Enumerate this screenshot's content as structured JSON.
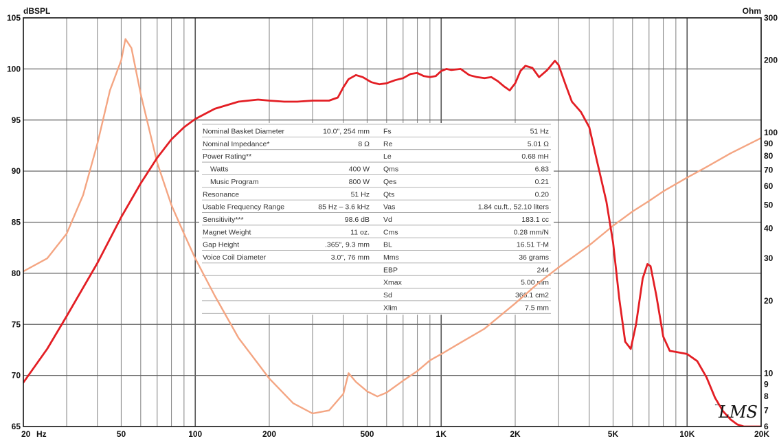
{
  "chart_data": {
    "type": "line",
    "ylabel_left": "dBSPL",
    "ylabel_right": "Ohm",
    "x_scale": "log",
    "x_range": [
      20,
      20000
    ],
    "y_left_range": [
      65,
      105
    ],
    "y_right_range": [
      6,
      300
    ],
    "y_right_scale": "log",
    "grid": true,
    "x_tick_labels": [
      {
        "v": 20,
        "t": "20"
      },
      {
        "v": 50,
        "t": "50"
      },
      {
        "v": 100,
        "t": "100"
      },
      {
        "v": 200,
        "t": "200"
      },
      {
        "v": 500,
        "t": "500"
      },
      {
        "v": 1000,
        "t": "1K"
      },
      {
        "v": 2000,
        "t": "2K"
      },
      {
        "v": 5000,
        "t": "5K"
      },
      {
        "v": 10000,
        "t": "10K"
      },
      {
        "v": 20000,
        "t": "20K"
      }
    ],
    "x_unit": "Hz",
    "y_left_ticks": [
      65,
      70,
      75,
      80,
      85,
      90,
      95,
      100,
      105
    ],
    "y_right_ticks": [
      6,
      7,
      8,
      9,
      10,
      20,
      30,
      40,
      50,
      60,
      70,
      80,
      90,
      100,
      200,
      300
    ],
    "series": [
      {
        "axis": "left",
        "color": "#e31e24",
        "points": [
          [
            20,
            69.3
          ],
          [
            25,
            72.6
          ],
          [
            30,
            75.8
          ],
          [
            40,
            81.0
          ],
          [
            50,
            85.5
          ],
          [
            60,
            88.8
          ],
          [
            70,
            91.3
          ],
          [
            80,
            93.1
          ],
          [
            90,
            94.3
          ],
          [
            100,
            95.1
          ],
          [
            120,
            96.1
          ],
          [
            150,
            96.8
          ],
          [
            180,
            97.0
          ],
          [
            200,
            96.9
          ],
          [
            230,
            96.8
          ],
          [
            260,
            96.8
          ],
          [
            300,
            96.9
          ],
          [
            350,
            96.9
          ],
          [
            380,
            97.2
          ],
          [
            400,
            98.2
          ],
          [
            420,
            99.0
          ],
          [
            450,
            99.4
          ],
          [
            480,
            99.2
          ],
          [
            520,
            98.7
          ],
          [
            560,
            98.5
          ],
          [
            600,
            98.6
          ],
          [
            650,
            98.9
          ],
          [
            700,
            99.1
          ],
          [
            750,
            99.5
          ],
          [
            800,
            99.6
          ],
          [
            850,
            99.3
          ],
          [
            900,
            99.2
          ],
          [
            950,
            99.3
          ],
          [
            1000,
            99.8
          ],
          [
            1050,
            100.0
          ],
          [
            1100,
            99.9
          ],
          [
            1200,
            100.0
          ],
          [
            1300,
            99.4
          ],
          [
            1400,
            99.2
          ],
          [
            1500,
            99.1
          ],
          [
            1600,
            99.2
          ],
          [
            1700,
            98.8
          ],
          [
            1800,
            98.3
          ],
          [
            1900,
            97.9
          ],
          [
            2000,
            98.6
          ],
          [
            2100,
            99.8
          ],
          [
            2200,
            100.3
          ],
          [
            2350,
            100.1
          ],
          [
            2500,
            99.2
          ],
          [
            2700,
            99.9
          ],
          [
            2900,
            100.8
          ],
          [
            3000,
            100.4
          ],
          [
            3200,
            98.5
          ],
          [
            3400,
            96.8
          ],
          [
            3700,
            95.8
          ],
          [
            4000,
            94.3
          ],
          [
            4300,
            91.0
          ],
          [
            4700,
            87.0
          ],
          [
            5000,
            83.0
          ],
          [
            5300,
            77.5
          ],
          [
            5600,
            73.3
          ],
          [
            5900,
            72.6
          ],
          [
            6200,
            75.0
          ],
          [
            6600,
            79.5
          ],
          [
            6900,
            80.9
          ],
          [
            7100,
            80.7
          ],
          [
            7500,
            77.8
          ],
          [
            8000,
            73.8
          ],
          [
            8500,
            72.4
          ],
          [
            9000,
            72.3
          ],
          [
            10000,
            72.1
          ],
          [
            11000,
            71.4
          ],
          [
            12000,
            69.8
          ],
          [
            13000,
            67.8
          ],
          [
            14000,
            66.5
          ],
          [
            15000,
            65.7
          ],
          [
            16000,
            65.2
          ],
          [
            17000,
            65.0
          ],
          [
            20000,
            65.0
          ]
        ]
      },
      {
        "axis": "right",
        "color": "#f4a582",
        "points": [
          [
            20,
            26.5
          ],
          [
            25,
            30
          ],
          [
            30,
            38
          ],
          [
            35,
            55
          ],
          [
            40,
            90
          ],
          [
            45,
            150
          ],
          [
            50,
            200
          ],
          [
            52,
            245
          ],
          [
            55,
            225
          ],
          [
            60,
            145
          ],
          [
            70,
            75
          ],
          [
            80,
            50
          ],
          [
            90,
            38
          ],
          [
            100,
            30
          ],
          [
            120,
            21
          ],
          [
            150,
            14
          ],
          [
            200,
            9.5
          ],
          [
            250,
            7.5
          ],
          [
            300,
            6.8
          ],
          [
            350,
            7.0
          ],
          [
            400,
            8.2
          ],
          [
            420,
            10.0
          ],
          [
            450,
            9.2
          ],
          [
            500,
            8.4
          ],
          [
            550,
            8.0
          ],
          [
            600,
            8.3
          ],
          [
            700,
            9.3
          ],
          [
            800,
            10.2
          ],
          [
            900,
            11.3
          ],
          [
            1000,
            12.0
          ],
          [
            1200,
            13.4
          ],
          [
            1500,
            15.3
          ],
          [
            2000,
            19.5
          ],
          [
            2500,
            23.8
          ],
          [
            3000,
            27.5
          ],
          [
            4000,
            34
          ],
          [
            5000,
            41
          ],
          [
            6000,
            47
          ],
          [
            7000,
            52
          ],
          [
            8000,
            57
          ],
          [
            10000,
            65
          ],
          [
            12000,
            72
          ],
          [
            15000,
            82
          ],
          [
            20000,
            95
          ]
        ]
      }
    ]
  },
  "specs_table": {
    "left": [
      {
        "label": "Nominal Basket Diameter",
        "value": "10.0\", 254 mm"
      },
      {
        "label": "Nominal Impedance*",
        "value": "8 Ω"
      },
      {
        "label": "Power Rating**",
        "value": ""
      },
      {
        "label": "Watts",
        "value": "400 W",
        "indent": true
      },
      {
        "label": "Music Program",
        "value": "800 W",
        "indent": true
      },
      {
        "label": "Resonance",
        "value": "51 Hz"
      },
      {
        "label": "Usable Frequency Range",
        "value": "85 Hz – 3.6 kHz"
      },
      {
        "label": "Sensitivity***",
        "value": "98.6 dB"
      },
      {
        "label": "Magnet Weight",
        "value": "11 oz."
      },
      {
        "label": "Gap Height",
        "value": ".365\", 9.3 mm"
      },
      {
        "label": "Voice Coil Diameter",
        "value": "3.0\", 76 mm"
      },
      {
        "label": "",
        "value": ""
      },
      {
        "label": "",
        "value": ""
      },
      {
        "label": "",
        "value": ""
      }
    ],
    "right": [
      {
        "label": "Fs",
        "value": "51 Hz"
      },
      {
        "label": "Re",
        "value": "5.01 Ω"
      },
      {
        "label": "Le",
        "value": "0.68 mH"
      },
      {
        "label": "Qms",
        "value": "6.83"
      },
      {
        "label": "Qes",
        "value": "0.21"
      },
      {
        "label": "Qts",
        "value": "0.20"
      },
      {
        "label": "Vas",
        "value": "1.84 cu.ft., 52.10 liters"
      },
      {
        "label": "Vd",
        "value": "183.1 cc"
      },
      {
        "label": "Cms",
        "value": "0.28 mm/N"
      },
      {
        "label": "BL",
        "value": "16.51 T-M"
      },
      {
        "label": "Mms",
        "value": "36 grams"
      },
      {
        "label": "EBP",
        "value": "244"
      },
      {
        "label": "Xmax",
        "value": "5.00 mm"
      },
      {
        "label": "Sd",
        "value": "366.1 cm2"
      },
      {
        "label": "Xlim",
        "value": "7.5 mm"
      }
    ]
  },
  "logo": {
    "text": "LMS",
    "tm": "™"
  }
}
